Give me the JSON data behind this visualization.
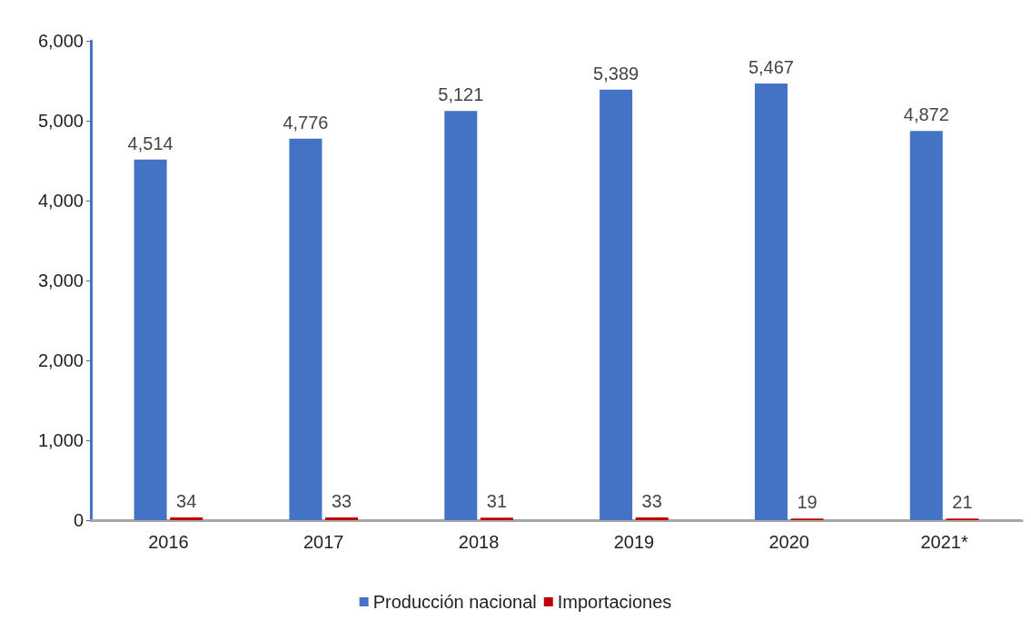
{
  "chart_data": {
    "type": "bar",
    "categories": [
      "2016",
      "2017",
      "2018",
      "2019",
      "2020",
      "2021*"
    ],
    "series": [
      {
        "name": "Producción nacional",
        "color": "#4472c4",
        "values": [
          4514,
          4776,
          5121,
          5389,
          5467,
          4872
        ],
        "value_labels": [
          "4,514",
          "4,776",
          "5,121",
          "5,389",
          "5,467",
          "4,872"
        ]
      },
      {
        "name": "Importaciones",
        "color": "#c00000",
        "values": [
          34,
          33,
          31,
          33,
          19,
          21
        ],
        "value_labels": [
          "34",
          "33",
          "31",
          "33",
          "19",
          "21"
        ]
      }
    ],
    "ylim": [
      0,
      6000
    ],
    "yticks": [
      {
        "value": 0,
        "label": "0"
      },
      {
        "value": 1000,
        "label": "1,000"
      },
      {
        "value": 2000,
        "label": "2,000"
      },
      {
        "value": 3000,
        "label": "3,000"
      },
      {
        "value": 4000,
        "label": "4,000"
      },
      {
        "value": 5000,
        "label": "5,000"
      },
      {
        "value": 6000,
        "label": "6,000"
      }
    ],
    "grid": false,
    "legend": "bottom"
  }
}
